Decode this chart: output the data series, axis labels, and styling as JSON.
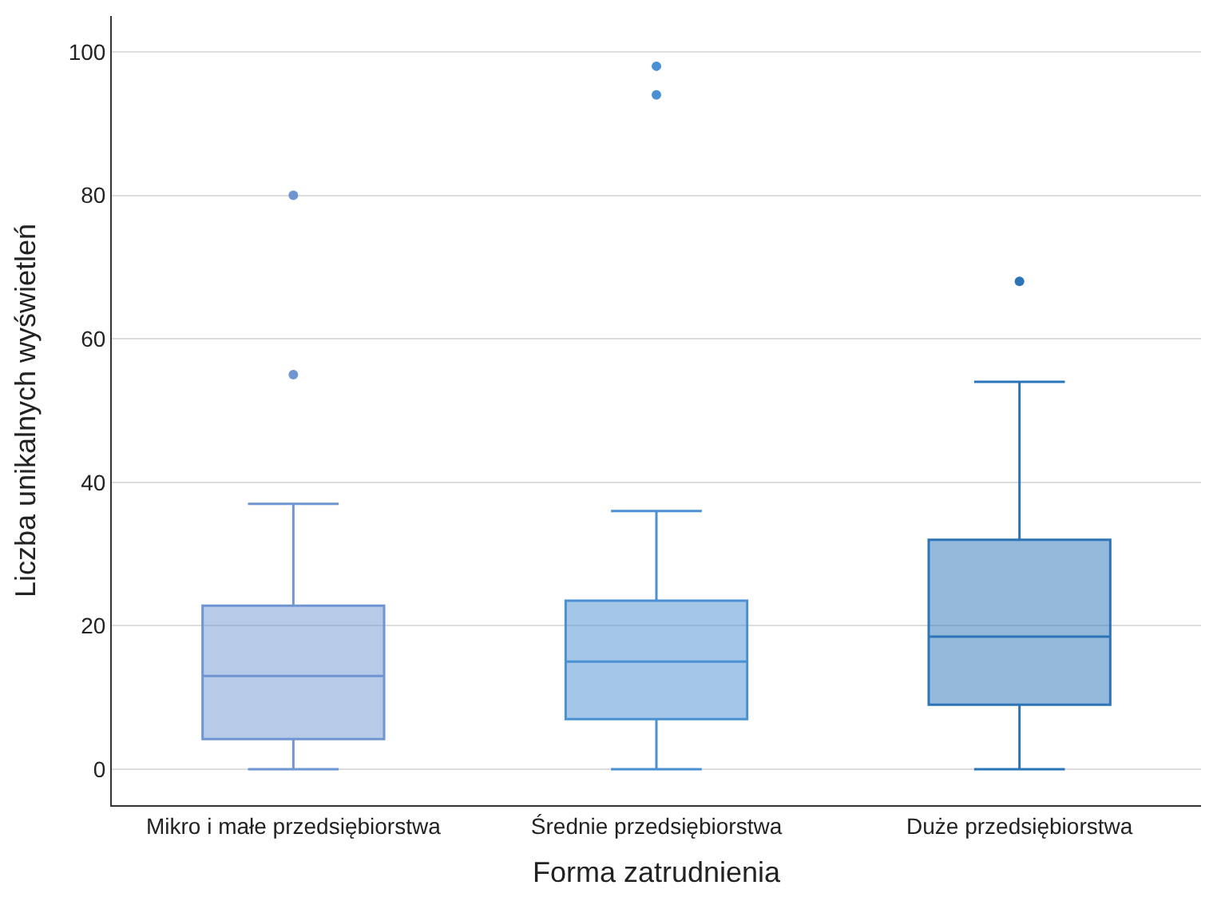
{
  "chart_data": {
    "type": "box",
    "xlabel": "Forma zatrudnienia",
    "ylabel": "Liczba unikalnych wyświetleń",
    "categories": [
      "Mikro i małe przedsiębiorstwa",
      "Średnie przedsiębiorstwa",
      "Duże przedsiębiorstwa"
    ],
    "colors": [
      "#6f95d2",
      "#4a90d2",
      "#2c74b8"
    ],
    "boxes": [
      {
        "low": 0,
        "q1": 4.2,
        "median": 13,
        "q3": 22.8,
        "high": 37,
        "outliers": [
          80,
          55
        ]
      },
      {
        "low": 0,
        "q1": 7,
        "median": 15,
        "q3": 23.5,
        "high": 36,
        "outliers": [
          98,
          94
        ]
      },
      {
        "low": 0,
        "q1": 9,
        "median": 18.5,
        "q3": 32,
        "high": 54,
        "outliers": [
          68
        ]
      }
    ],
    "ylim": [
      -5,
      105
    ],
    "yticks": [
      0,
      20,
      40,
      60,
      80,
      100
    ],
    "grid": "y"
  }
}
